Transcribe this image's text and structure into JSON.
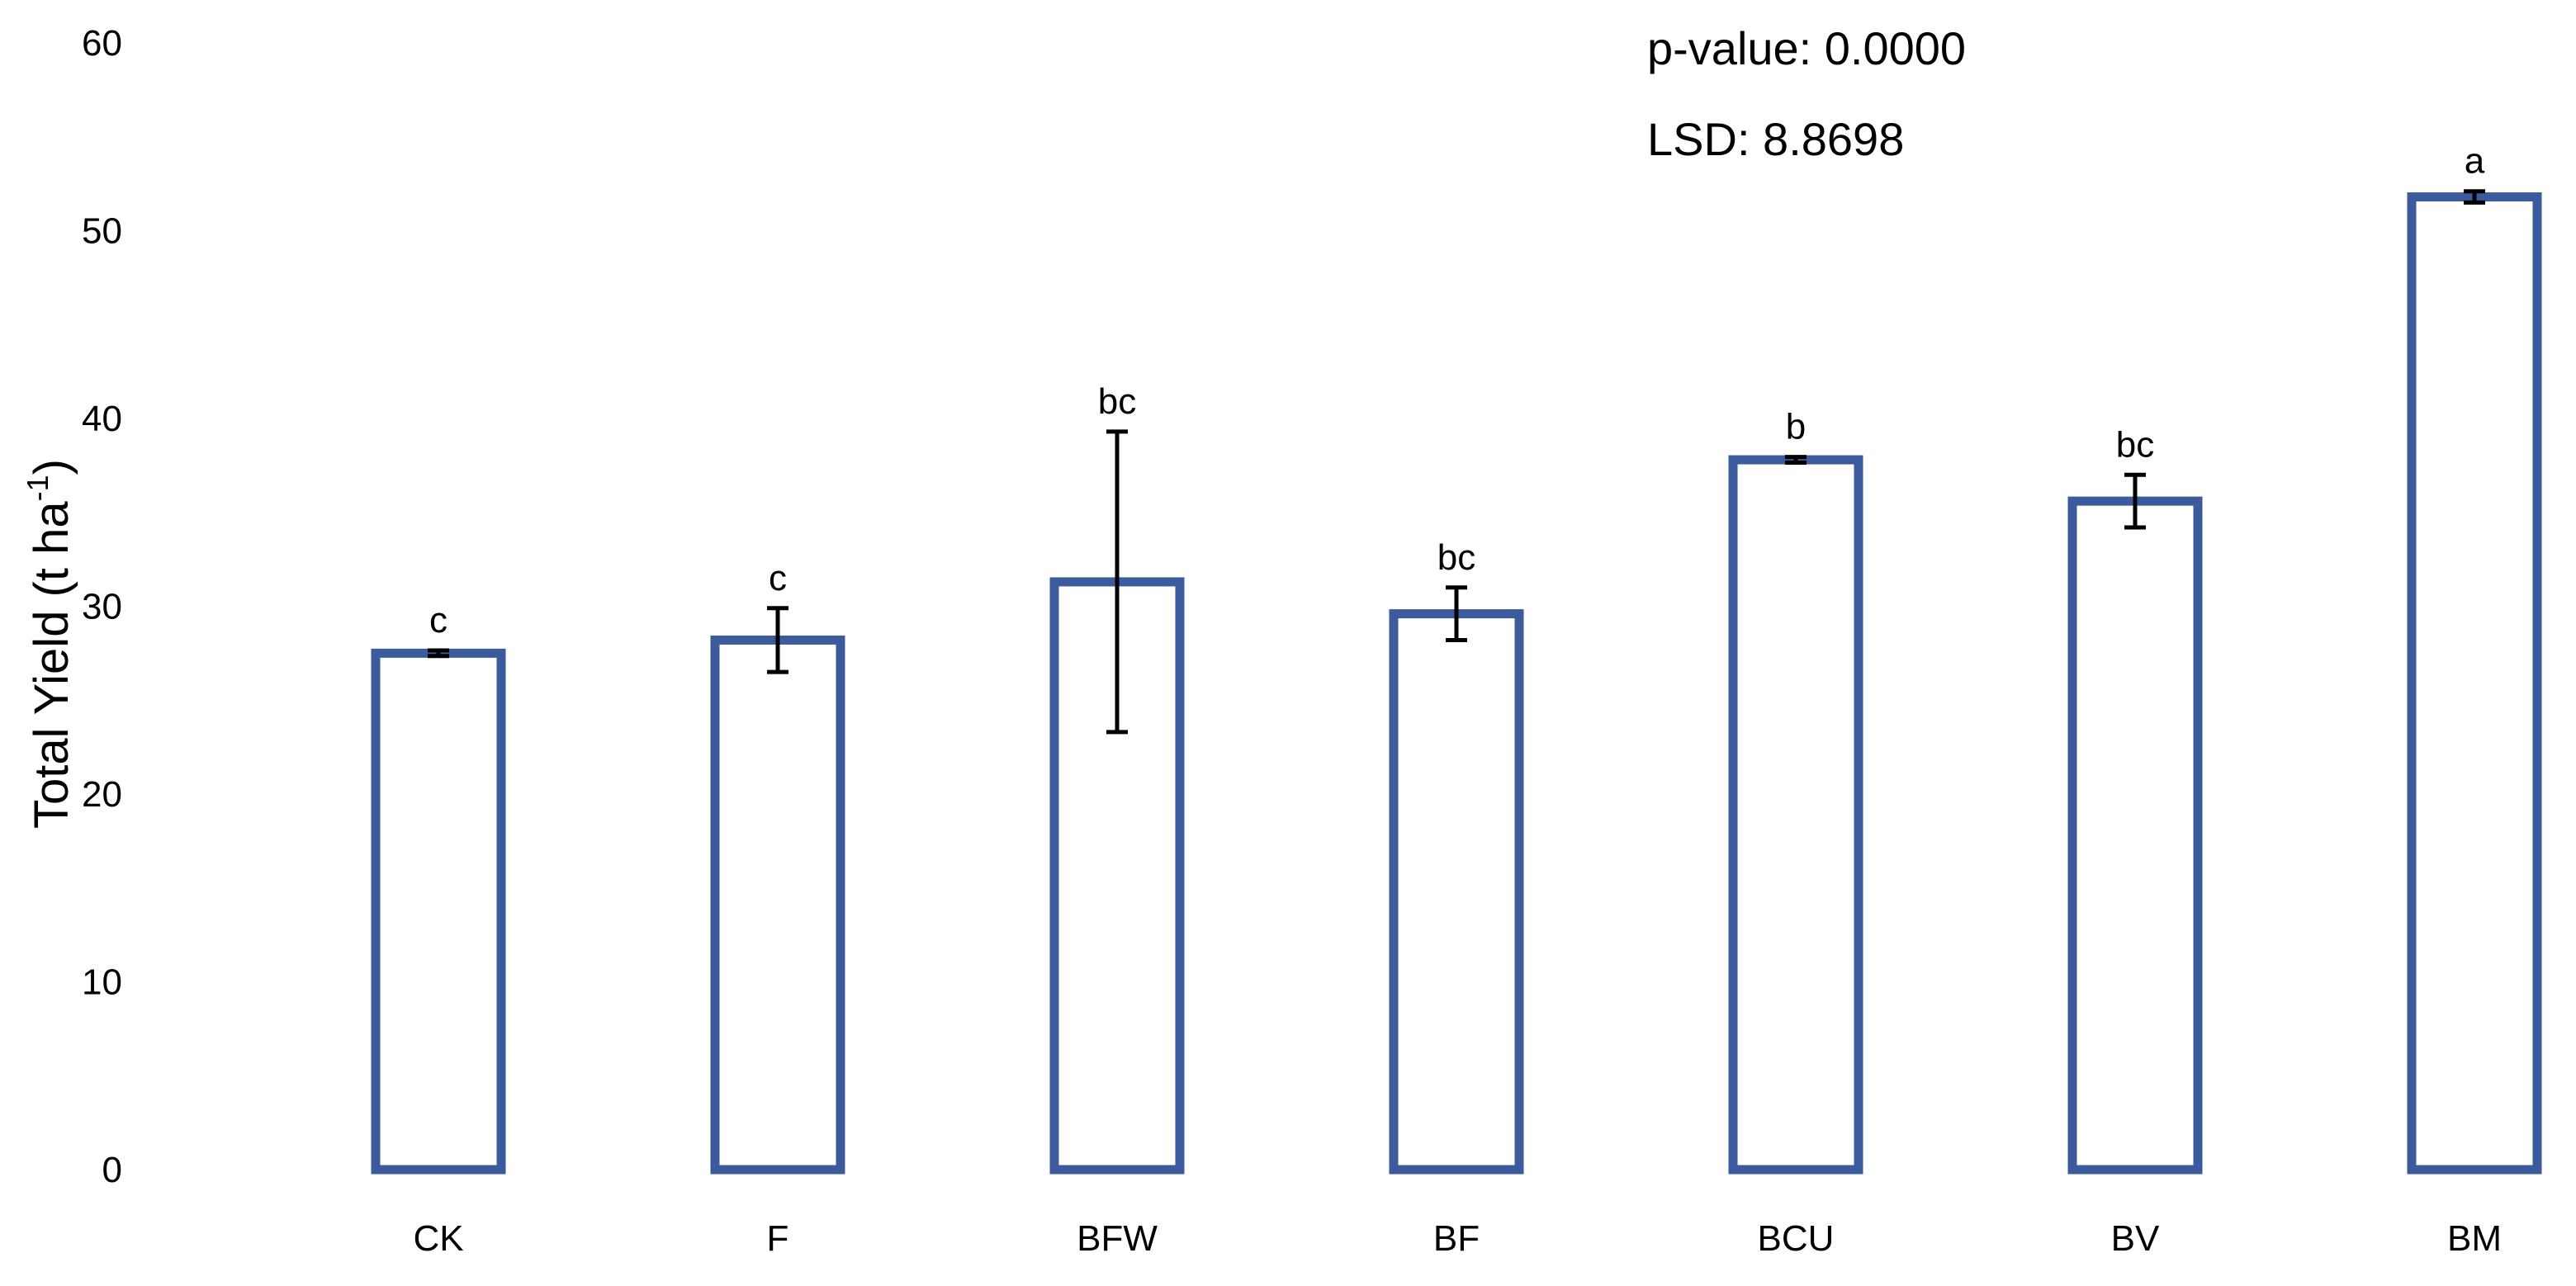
{
  "chart_data": {
    "type": "bar",
    "categories": [
      "CK",
      "F",
      "BFW",
      "BF",
      "BCU",
      "BV",
      "BM"
    ],
    "values": [
      27.5,
      28.2,
      31.3,
      29.6,
      37.8,
      35.6,
      51.8
    ],
    "errors": [
      0.15,
      1.7,
      8.0,
      1.4,
      0.15,
      1.4,
      0.3
    ],
    "significance_letters": [
      "c",
      "c",
      "bc",
      "bc",
      "b",
      "bc",
      "a"
    ],
    "title": "",
    "xlabel": "",
    "ylabel": {
      "main": "Total Yield (t ha",
      "superscript": "-1",
      "suffix": ")"
    },
    "ylim": [
      0,
      60
    ],
    "yticks": [
      "0",
      "10",
      "20",
      "30",
      "40",
      "50",
      "60"
    ],
    "grid": false,
    "legend": "none",
    "bar_style": "outline",
    "bar_color": "#3b5b9d",
    "annotations": {
      "p_value": "p-value: 0.0000",
      "lsd": "LSD: 8.8698"
    }
  }
}
